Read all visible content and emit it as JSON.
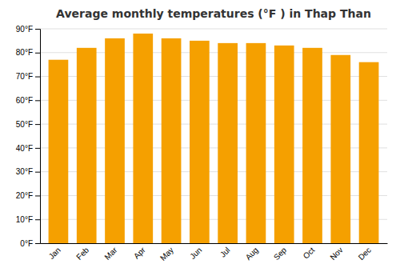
{
  "chart_data": {
    "type": "bar",
    "title": "Average monthly temperatures (°F ) in Thap Than",
    "categories": [
      "Jan",
      "Feb",
      "Mar",
      "Apr",
      "May",
      "Jun",
      "Jul",
      "Aug",
      "Sep",
      "Oct",
      "Nov",
      "Dec"
    ],
    "values": [
      77,
      82,
      86,
      88,
      86,
      85,
      84,
      84,
      83,
      82,
      79,
      76
    ],
    "color": "#F5A000",
    "ylim": [
      0,
      90
    ],
    "yticks": [
      {
        "value": 0,
        "label": "0°F"
      },
      {
        "value": 10,
        "label": "10°F"
      },
      {
        "value": 20,
        "label": "20°F"
      },
      {
        "value": 30,
        "label": "30°F"
      },
      {
        "value": 40,
        "label": "40°F"
      },
      {
        "value": 50,
        "label": "50°F"
      },
      {
        "value": 60,
        "label": "60°F"
      },
      {
        "value": 70,
        "label": "70°F"
      },
      {
        "value": 80,
        "label": "80°F"
      },
      {
        "value": 90,
        "label": "90°F"
      }
    ],
    "grid": true
  }
}
